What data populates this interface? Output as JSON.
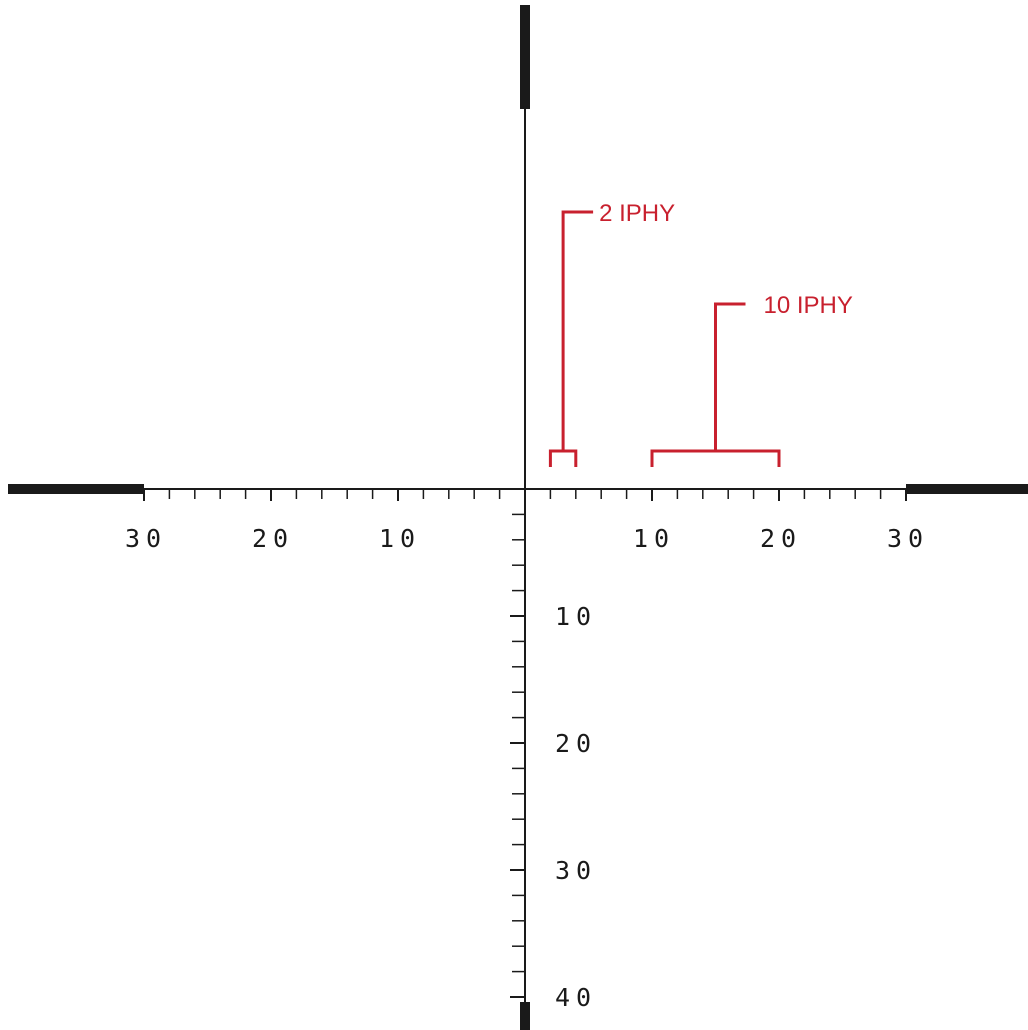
{
  "colors": {
    "reticle": "#1a1a1a",
    "annotation": "#c8202e",
    "background": "#ffffff"
  },
  "horizontal_scale": {
    "range": [
      -30,
      30
    ],
    "minor_tick_step": 2,
    "labeled_values": [
      -30,
      -20,
      -10,
      10,
      20,
      30
    ],
    "labels": [
      "30",
      "20",
      "10",
      "10",
      "20",
      "30"
    ]
  },
  "vertical_scale": {
    "range": [
      0,
      40
    ],
    "minor_tick_step": 2,
    "labeled_values": [
      10,
      20,
      30,
      40
    ],
    "labels": [
      "10",
      "20",
      "30",
      "40"
    ]
  },
  "annotations": [
    {
      "text": "2 IPHY",
      "from": 2,
      "to": 4
    },
    {
      "text": "10 IPHY",
      "from": 10,
      "to": 20
    }
  ]
}
